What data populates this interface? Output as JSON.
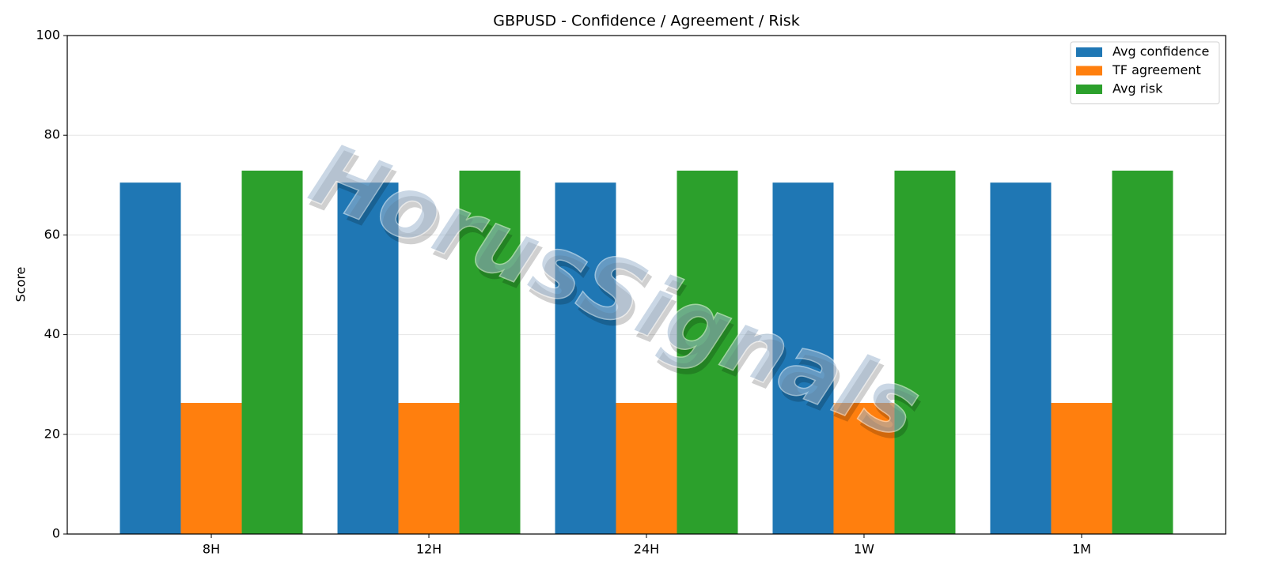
{
  "chart_data": {
    "type": "bar",
    "title": "GBPUSD - Confidence / Agreement / Risk",
    "y_label": "Score",
    "categories": [
      "8H",
      "12H",
      "24H",
      "1W",
      "1M"
    ],
    "series": [
      {
        "name": "Avg confidence",
        "color": "#1f77b4",
        "values": [
          70.5,
          70.5,
          70.5,
          70.5,
          70.5
        ]
      },
      {
        "name": "TF agreement",
        "color": "#ff7f0e",
        "values": [
          26.3,
          26.3,
          26.3,
          26.3,
          26.3
        ]
      },
      {
        "name": "Avg risk",
        "color": "#2ca02c",
        "values": [
          72.9,
          72.9,
          72.9,
          72.9,
          72.9
        ]
      }
    ],
    "ylim": [
      0,
      100
    ],
    "yticks": [
      0,
      20,
      40,
      60,
      80,
      100
    ],
    "grid": true,
    "legend": "upper-right",
    "watermark": "HorusSignals"
  }
}
